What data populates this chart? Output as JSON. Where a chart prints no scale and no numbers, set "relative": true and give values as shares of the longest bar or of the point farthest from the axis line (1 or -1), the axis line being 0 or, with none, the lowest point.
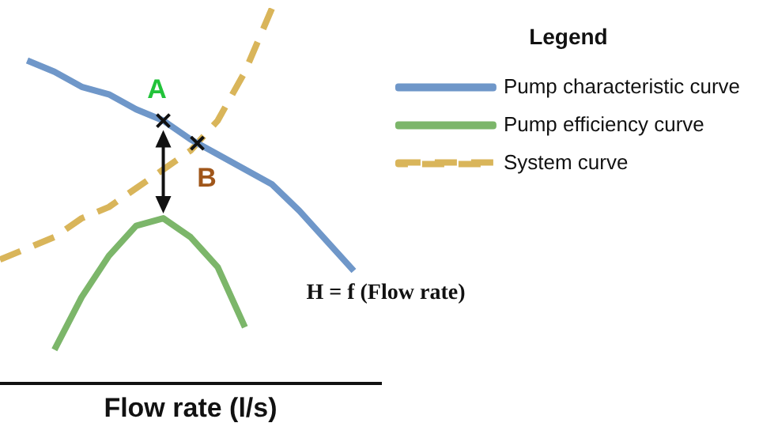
{
  "chart_data": {
    "type": "line",
    "relative": true,
    "xlabel": "Flow rate (l/s)",
    "legend_title": "Legend",
    "legend": "right",
    "marker": "none",
    "categories": [
      null,
      null,
      null,
      null,
      null,
      null,
      null,
      null,
      null,
      null,
      null,
      null,
      null,
      null,
      null
    ],
    "series": [
      {
        "name": "Pump characteristic curve",
        "color": "#6f97c9",
        "line_style": "solid",
        "values": [
          null,
          0.86,
          0.83,
          0.79,
          0.77,
          0.73,
          0.7,
          0.65,
          0.61,
          0.57,
          0.53,
          0.46,
          0.38,
          0.3,
          null
        ]
      },
      {
        "name": "Pump efficiency curve",
        "color": "#7cb66a",
        "line_style": "solid",
        "values": [
          null,
          null,
          0.09,
          0.23,
          0.34,
          0.42,
          0.44,
          0.39,
          0.31,
          0.15,
          null,
          null,
          null,
          null,
          null
        ]
      },
      {
        "name": "System curve",
        "color": "#d9b55a",
        "line_style": "dashed",
        "values": [
          0.33,
          0.36,
          0.39,
          0.44,
          0.47,
          0.52,
          0.57,
          0.62,
          0.7,
          0.83,
          1,
          null,
          null,
          null,
          null
        ]
      }
    ],
    "annotations": [
      "A",
      "B",
      "H = f (Flow rate)"
    ]
  }
}
